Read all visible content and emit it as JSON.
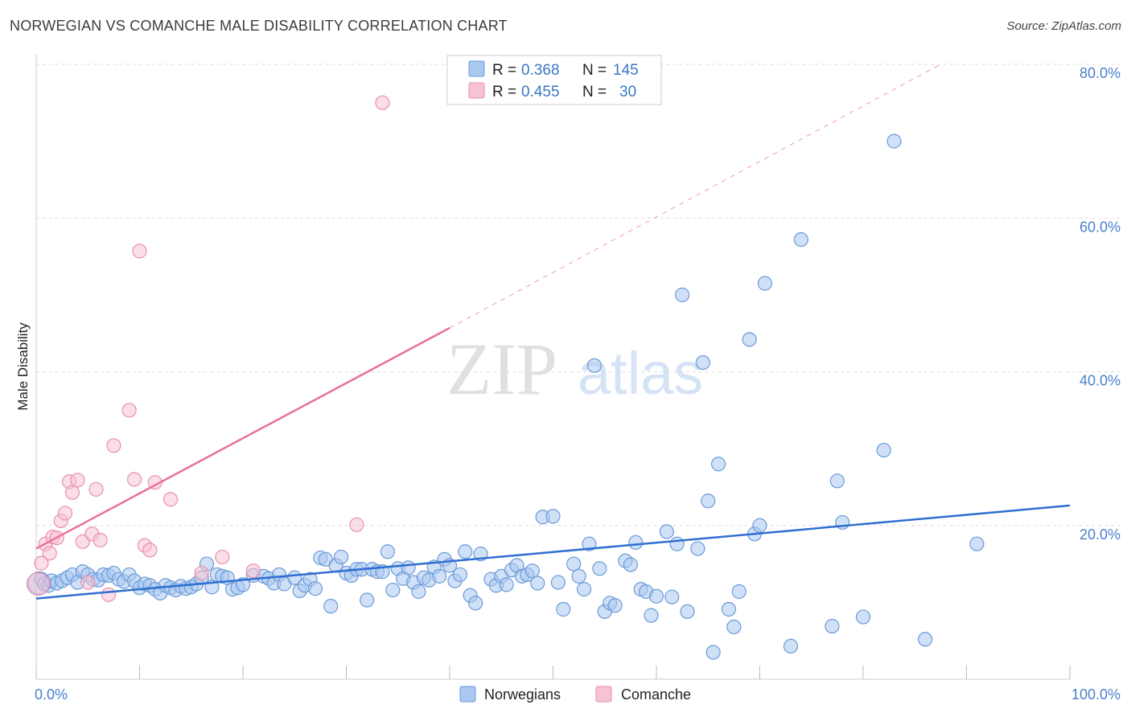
{
  "title": "NORWEGIAN VS COMANCHE MALE DISABILITY CORRELATION CHART",
  "source": "Source: ZipAtlas.com",
  "watermark": {
    "zip": "ZIP",
    "atlas": "atlas"
  },
  "colors": {
    "blue_fill": "#a9c8f0",
    "blue_stroke": "#6b9ad8",
    "blue_line": "#2f6fd0",
    "pink_fill": "#f7c2d3",
    "pink_stroke": "#e890ae",
    "pink_line": "#e8719a",
    "tick_text": "#4a7fcc",
    "grid": "#dddddd"
  },
  "legend": {
    "rows": [
      {
        "r_label": "R =",
        "r_value": "0.368",
        "n_label": "N =",
        "n_value": "145"
      },
      {
        "r_label": "R =",
        "r_value": "0.455",
        "n_label": "N =",
        "n_value": "30"
      }
    ]
  },
  "chart_data": {
    "type": "scatter",
    "title": "NORWEGIAN VS COMANCHE MALE DISABILITY CORRELATION CHART",
    "xlabel": "",
    "ylabel": "Male Disability",
    "xlim": [
      0,
      100
    ],
    "ylim": [
      0,
      80
    ],
    "x_tick_labels": [
      "0.0%",
      "100.0%"
    ],
    "y_tick_labels": [
      "20.0%",
      "40.0%",
      "60.0%",
      "80.0%"
    ],
    "y_ticks": [
      20,
      40,
      60,
      80
    ],
    "grid": true,
    "legend_position": "top-center",
    "series": [
      {
        "name": "Norwegians",
        "r": 0.368,
        "n": 145,
        "trend": {
          "x": [
            0,
            100
          ],
          "y": [
            10.5,
            22.6
          ]
        },
        "points": [
          [
            0.3,
            12.5
          ],
          [
            0.5,
            13
          ],
          [
            0.8,
            12.4
          ],
          [
            1.2,
            12.2
          ],
          [
            1.5,
            12.8
          ],
          [
            2,
            12.5
          ],
          [
            2.5,
            12.8
          ],
          [
            3,
            13.2
          ],
          [
            3.5,
            13.6
          ],
          [
            4,
            12.6
          ],
          [
            4.5,
            14
          ],
          [
            5,
            13.6
          ],
          [
            5.5,
            13
          ],
          [
            6,
            12.9
          ],
          [
            6.5,
            13.6
          ],
          [
            7,
            13.5
          ],
          [
            7.5,
            13.8
          ],
          [
            8,
            13
          ],
          [
            8.5,
            12.7
          ],
          [
            9,
            13.6
          ],
          [
            9.5,
            12.8
          ],
          [
            10,
            11.9
          ],
          [
            10.5,
            12.4
          ],
          [
            11,
            12.2
          ],
          [
            11.5,
            11.7
          ],
          [
            12,
            11.2
          ],
          [
            12.5,
            12.2
          ],
          [
            13,
            11.9
          ],
          [
            13.5,
            11.6
          ],
          [
            14,
            12.1
          ],
          [
            14.5,
            11.8
          ],
          [
            15,
            12
          ],
          [
            15.5,
            12.4
          ],
          [
            16,
            13.2
          ],
          [
            16.5,
            15
          ],
          [
            17,
            12
          ],
          [
            17.5,
            13.6
          ],
          [
            18,
            13.4
          ],
          [
            18.5,
            13.2
          ],
          [
            19,
            11.7
          ],
          [
            19.5,
            11.9
          ],
          [
            20,
            12.3
          ],
          [
            21,
            13.5
          ],
          [
            22,
            13.4
          ],
          [
            22.5,
            13.1
          ],
          [
            23,
            12.5
          ],
          [
            23.5,
            13.6
          ],
          [
            24,
            12.4
          ],
          [
            25,
            13.2
          ],
          [
            25.5,
            11.5
          ],
          [
            26,
            12.2
          ],
          [
            26.5,
            13
          ],
          [
            27,
            11.8
          ],
          [
            27.5,
            15.8
          ],
          [
            28,
            15.6
          ],
          [
            28.5,
            9.5
          ],
          [
            29,
            14.8
          ],
          [
            29.5,
            15.9
          ],
          [
            30,
            13.8
          ],
          [
            30.5,
            13.5
          ],
          [
            31,
            14.3
          ],
          [
            31.5,
            14.3
          ],
          [
            32,
            10.3
          ],
          [
            32.5,
            14.3
          ],
          [
            33,
            14
          ],
          [
            33.5,
            14
          ],
          [
            34,
            16.6
          ],
          [
            34.5,
            11.6
          ],
          [
            35,
            14.4
          ],
          [
            35.5,
            13.1
          ],
          [
            36,
            14.5
          ],
          [
            36.5,
            12.6
          ],
          [
            37,
            11.4
          ],
          [
            37.5,
            13.2
          ],
          [
            38,
            12.9
          ],
          [
            38.5,
            14.6
          ],
          [
            39,
            13.4
          ],
          [
            39.5,
            15.6
          ],
          [
            40,
            14.8
          ],
          [
            40.5,
            12.8
          ],
          [
            41,
            13.6
          ],
          [
            41.5,
            16.6
          ],
          [
            42,
            10.9
          ],
          [
            42.5,
            9.9
          ],
          [
            43,
            16.3
          ],
          [
            44,
            13
          ],
          [
            44.5,
            12.2
          ],
          [
            45,
            13.4
          ],
          [
            45.5,
            12.3
          ],
          [
            46,
            14.2
          ],
          [
            46.5,
            14.8
          ],
          [
            47,
            13.4
          ],
          [
            47.5,
            13.6
          ],
          [
            48,
            14.1
          ],
          [
            48.5,
            12.5
          ],
          [
            49,
            21.1
          ],
          [
            50,
            21.2
          ],
          [
            50.5,
            12.6
          ],
          [
            51,
            9.1
          ],
          [
            52,
            15
          ],
          [
            52.5,
            13.4
          ],
          [
            53,
            11.7
          ],
          [
            53.5,
            17.6
          ],
          [
            54,
            40.8
          ],
          [
            54.5,
            14.4
          ],
          [
            55,
            8.8
          ],
          [
            55.5,
            9.9
          ],
          [
            56,
            9.6
          ],
          [
            57,
            15.4
          ],
          [
            57.5,
            14.9
          ],
          [
            58,
            17.8
          ],
          [
            58.5,
            11.7
          ],
          [
            59,
            11.4
          ],
          [
            59.5,
            8.3
          ],
          [
            60,
            10.8
          ],
          [
            61,
            19.2
          ],
          [
            61.5,
            10.7
          ],
          [
            62,
            17.6
          ],
          [
            62.5,
            50
          ],
          [
            63,
            8.8
          ],
          [
            64,
            17
          ],
          [
            64.5,
            41.2
          ],
          [
            65,
            23.2
          ],
          [
            65.5,
            3.5
          ],
          [
            66,
            28
          ],
          [
            67,
            9.1
          ],
          [
            67.5,
            6.8
          ],
          [
            68,
            11.4
          ],
          [
            69,
            44.2
          ],
          [
            69.5,
            18.9
          ],
          [
            70,
            20
          ],
          [
            70.5,
            51.5
          ],
          [
            73,
            4.3
          ],
          [
            74,
            57.2
          ],
          [
            77,
            6.9
          ],
          [
            77.5,
            25.8
          ],
          [
            78,
            20.4
          ],
          [
            80,
            8.1
          ],
          [
            82,
            29.8
          ],
          [
            83,
            70
          ],
          [
            86,
            5.2
          ],
          [
            91,
            17.6
          ]
        ]
      },
      {
        "name": "Comanche",
        "r": 0.455,
        "n": 30,
        "trend": {
          "x": [
            0,
            40
          ],
          "y": [
            17,
            45.7
          ]
        },
        "trend_dashed": {
          "x": [
            40,
            87.5
          ],
          "y": [
            45.7,
            80
          ]
        },
        "points": [
          [
            0.2,
            12.4
          ],
          [
            0.5,
            15.1
          ],
          [
            0.9,
            17.6
          ],
          [
            1.3,
            16.4
          ],
          [
            1.6,
            18.5
          ],
          [
            2,
            18.4
          ],
          [
            2.4,
            20.6
          ],
          [
            2.8,
            21.6
          ],
          [
            3.2,
            25.7
          ],
          [
            3.5,
            24.3
          ],
          [
            4,
            25.9
          ],
          [
            4.5,
            17.9
          ],
          [
            5,
            12.6
          ],
          [
            5.4,
            18.9
          ],
          [
            5.8,
            24.7
          ],
          [
            6.2,
            18.1
          ],
          [
            7,
            11
          ],
          [
            7.5,
            30.4
          ],
          [
            9,
            35
          ],
          [
            9.5,
            26
          ],
          [
            10,
            55.7
          ],
          [
            10.5,
            17.4
          ],
          [
            11,
            16.8
          ],
          [
            11.5,
            25.6
          ],
          [
            13,
            23.4
          ],
          [
            16,
            13.8
          ],
          [
            18,
            15.9
          ],
          [
            21,
            14.1
          ],
          [
            31,
            20.1
          ],
          [
            33.5,
            75
          ]
        ]
      }
    ]
  },
  "bottom_legend": {
    "items": [
      "Norwegians",
      "Comanche"
    ]
  }
}
